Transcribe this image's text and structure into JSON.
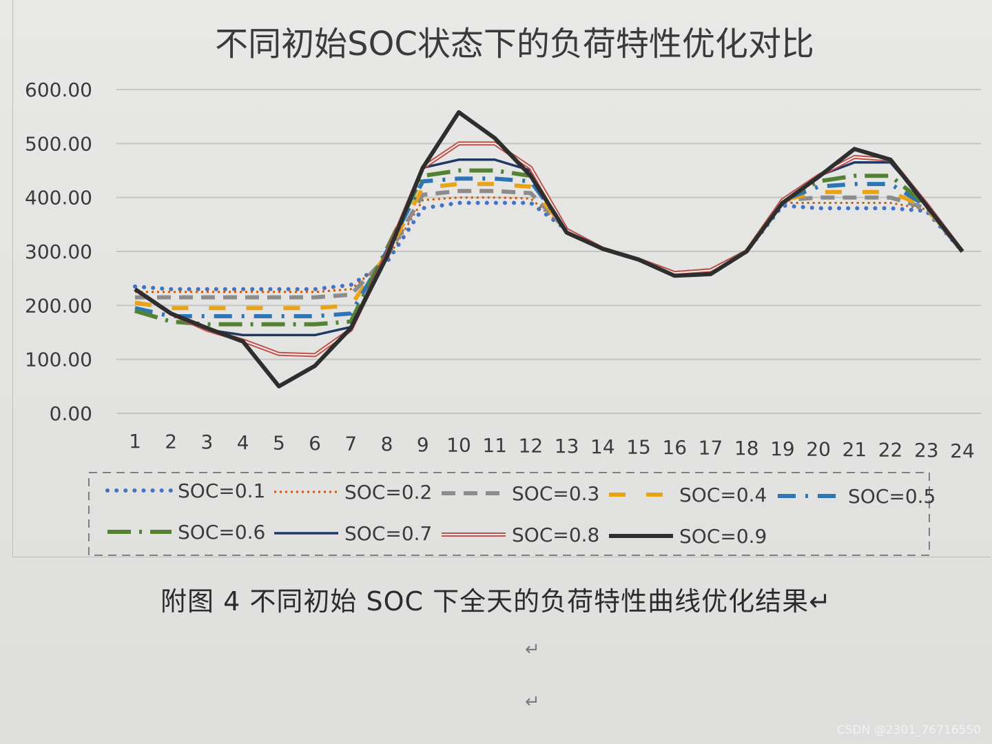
{
  "chart_data": {
    "type": "line",
    "title": "不同初始SOC状态下的负荷特性优化对比",
    "xlabel": "",
    "ylabel": "",
    "categories": [
      "1",
      "2",
      "3",
      "4",
      "5",
      "6",
      "7",
      "8",
      "9",
      "10",
      "11",
      "12",
      "13",
      "14",
      "15",
      "16",
      "17",
      "18",
      "19",
      "20",
      "21",
      "22",
      "23",
      "24"
    ],
    "ylim": [
      0,
      600
    ],
    "yticks": [
      "0.00",
      "100.00",
      "200.00",
      "300.00",
      "400.00",
      "500.00",
      "600.00"
    ],
    "grid": true,
    "legend_position": "bottom",
    "series": [
      {
        "name": "SOC=0.1",
        "color": "#4472c4",
        "style": "dots",
        "width": 6,
        "values": [
          235,
          230,
          230,
          230,
          230,
          230,
          238,
          280,
          380,
          390,
          390,
          390,
          340,
          305,
          285,
          260,
          265,
          300,
          385,
          380,
          380,
          380,
          375,
          300
        ]
      },
      {
        "name": "SOC=0.2",
        "color": "#c55a11",
        "style": "dot",
        "width": 3,
        "values": [
          225,
          225,
          225,
          225,
          225,
          225,
          230,
          285,
          395,
          400,
          400,
          398,
          340,
          305,
          285,
          260,
          265,
          300,
          390,
          390,
          390,
          390,
          378,
          300
        ]
      },
      {
        "name": "SOC=0.3",
        "color": "#8c8c8c",
        "style": "dash",
        "width": 6,
        "values": [
          215,
          215,
          215,
          215,
          215,
          215,
          220,
          290,
          405,
          412,
          412,
          408,
          340,
          305,
          285,
          260,
          265,
          300,
          395,
          400,
          400,
          400,
          380,
          300
        ]
      },
      {
        "name": "SOC=0.4",
        "color": "#e8a317",
        "style": "longdash",
        "width": 6,
        "values": [
          205,
          195,
          195,
          195,
          195,
          195,
          200,
          295,
          418,
          425,
          425,
          420,
          340,
          305,
          285,
          260,
          265,
          300,
          395,
          410,
          410,
          410,
          382,
          300
        ]
      },
      {
        "name": "SOC=0.5",
        "color": "#2e75b6",
        "style": "dashdot",
        "width": 6,
        "values": [
          195,
          180,
          180,
          180,
          180,
          180,
          185,
          300,
          430,
          435,
          435,
          430,
          340,
          305,
          285,
          260,
          265,
          300,
          395,
          420,
          425,
          425,
          384,
          300
        ]
      },
      {
        "name": "SOC=0.6",
        "color": "#548235",
        "style": "dashdot2",
        "width": 6,
        "values": [
          190,
          170,
          165,
          165,
          165,
          165,
          170,
          305,
          440,
          450,
          450,
          440,
          340,
          305,
          285,
          260,
          265,
          300,
          395,
          430,
          440,
          440,
          386,
          300
        ]
      },
      {
        "name": "SOC=0.7",
        "color": "#203864",
        "style": "solid",
        "width": 3.5,
        "values": [
          230,
          185,
          155,
          145,
          145,
          145,
          160,
          300,
          455,
          470,
          470,
          450,
          340,
          305,
          285,
          260,
          265,
          300,
          395,
          440,
          465,
          465,
          388,
          300
        ]
      },
      {
        "name": "SOC=0.8",
        "color": "#c0504d",
        "style": "double",
        "width": 6,
        "values": [
          230,
          185,
          155,
          135,
          110,
          108,
          155,
          295,
          455,
          500,
          500,
          455,
          340,
          305,
          285,
          260,
          265,
          300,
          395,
          440,
          475,
          470,
          388,
          300
        ]
      },
      {
        "name": "SOC=0.9",
        "color": "#2e2e2e",
        "style": "solid",
        "width": 6,
        "values": [
          230,
          185,
          158,
          133,
          50,
          88,
          158,
          290,
          455,
          558,
          510,
          440,
          335,
          305,
          285,
          255,
          258,
          300,
          390,
          438,
          490,
          470,
          385,
          300
        ]
      }
    ]
  },
  "caption": "附图 4 不同初始 SOC 下全天的负荷特性曲线优化结果↵",
  "return_marks": [
    "↵",
    "↵"
  ],
  "watermark": "CSDN @2301_76716550"
}
